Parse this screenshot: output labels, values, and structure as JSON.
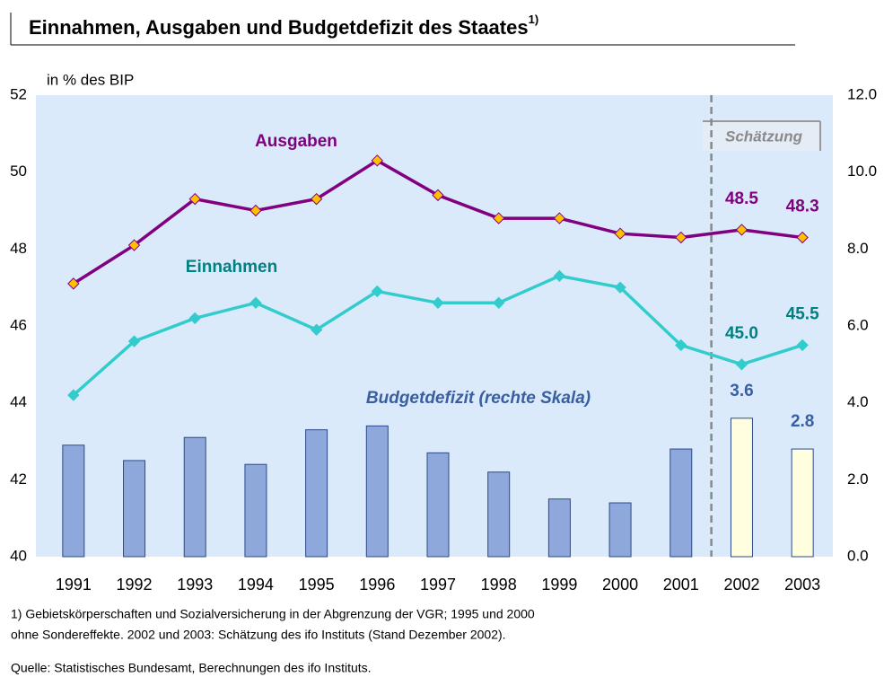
{
  "chart_data": {
    "type": "line_bar",
    "title": "Einnahmen, Ausgaben und Budgetdefizit des Staates",
    "title_note": "1)",
    "y_label": "in % des BIP",
    "estimate_label": "Schätzung",
    "categories": [
      "1991",
      "1992",
      "1993",
      "1994",
      "1995",
      "1996",
      "1997",
      "1998",
      "1999",
      "2000",
      "2001",
      "2002",
      "2003"
    ],
    "series": [
      {
        "name": "Ausgaben",
        "type": "line",
        "color": "#800080",
        "label_color": "#800080",
        "marker_color": "#ffc000",
        "values": [
          47.1,
          48.1,
          49.3,
          49.0,
          49.3,
          50.3,
          49.4,
          48.8,
          48.8,
          48.4,
          48.3,
          48.5,
          48.3
        ],
        "value_labels": [
          null,
          null,
          null,
          null,
          null,
          null,
          null,
          null,
          null,
          null,
          null,
          "48.5",
          "48.3"
        ]
      },
      {
        "name": "Einnahmen",
        "type": "line",
        "color": "#33cccc",
        "label_color": "#008080",
        "marker_color": "#33cccc",
        "values": [
          44.2,
          45.6,
          46.2,
          46.6,
          45.9,
          46.9,
          46.6,
          46.6,
          47.3,
          47.0,
          45.5,
          45.0,
          45.5
        ],
        "value_labels": [
          null,
          null,
          null,
          null,
          null,
          null,
          null,
          null,
          null,
          null,
          null,
          "45.0",
          "45.5"
        ]
      },
      {
        "name": "Budgetdefizit (rechte Skala)",
        "type": "bar",
        "axis": "y2",
        "label_color": "#3a5fa0",
        "colors": [
          "#8fa8dc",
          "#8fa8dc",
          "#8fa8dc",
          "#8fa8dc",
          "#8fa8dc",
          "#8fa8dc",
          "#8fa8dc",
          "#8fa8dc",
          "#8fa8dc",
          "#8fa8dc",
          "#8fa8dc",
          "#ffffe0",
          "#ffffe0"
        ],
        "values": [
          2.9,
          2.5,
          3.1,
          2.4,
          3.3,
          3.4,
          2.7,
          2.2,
          1.5,
          1.4,
          2.8,
          3.6,
          2.8
        ],
        "value_labels": [
          null,
          null,
          null,
          null,
          null,
          null,
          null,
          null,
          null,
          null,
          null,
          "3.6",
          "2.8"
        ]
      }
    ],
    "ylim": [
      40,
      52
    ],
    "yticks": [
      40,
      42,
      44,
      46,
      48,
      50,
      52
    ],
    "y2lim": [
      0,
      12
    ],
    "y2ticks": [
      {
        "value": 0,
        "label": "0.0"
      },
      {
        "value": 2,
        "label": "2.0"
      },
      {
        "value": 4,
        "label": "4.0"
      },
      {
        "value": 6,
        "label": "6.0"
      },
      {
        "value": 8,
        "label": "8.0"
      },
      {
        "value": 10,
        "label": "10.0"
      },
      {
        "value": 12,
        "label": "12.0"
      }
    ],
    "footnote": [
      "1) Gebietskörperschaften und Sozialversicherung in der Abgrenzung der VGR; 1995 und 2000",
      "ohne  Sondereffekte. 2002 und 2003: Schätzung des ifo Instituts (Stand Dezember 2002)."
    ],
    "source": "Quelle: Statistisches Bundesamt, Berechnungen des ifo Instituts."
  }
}
